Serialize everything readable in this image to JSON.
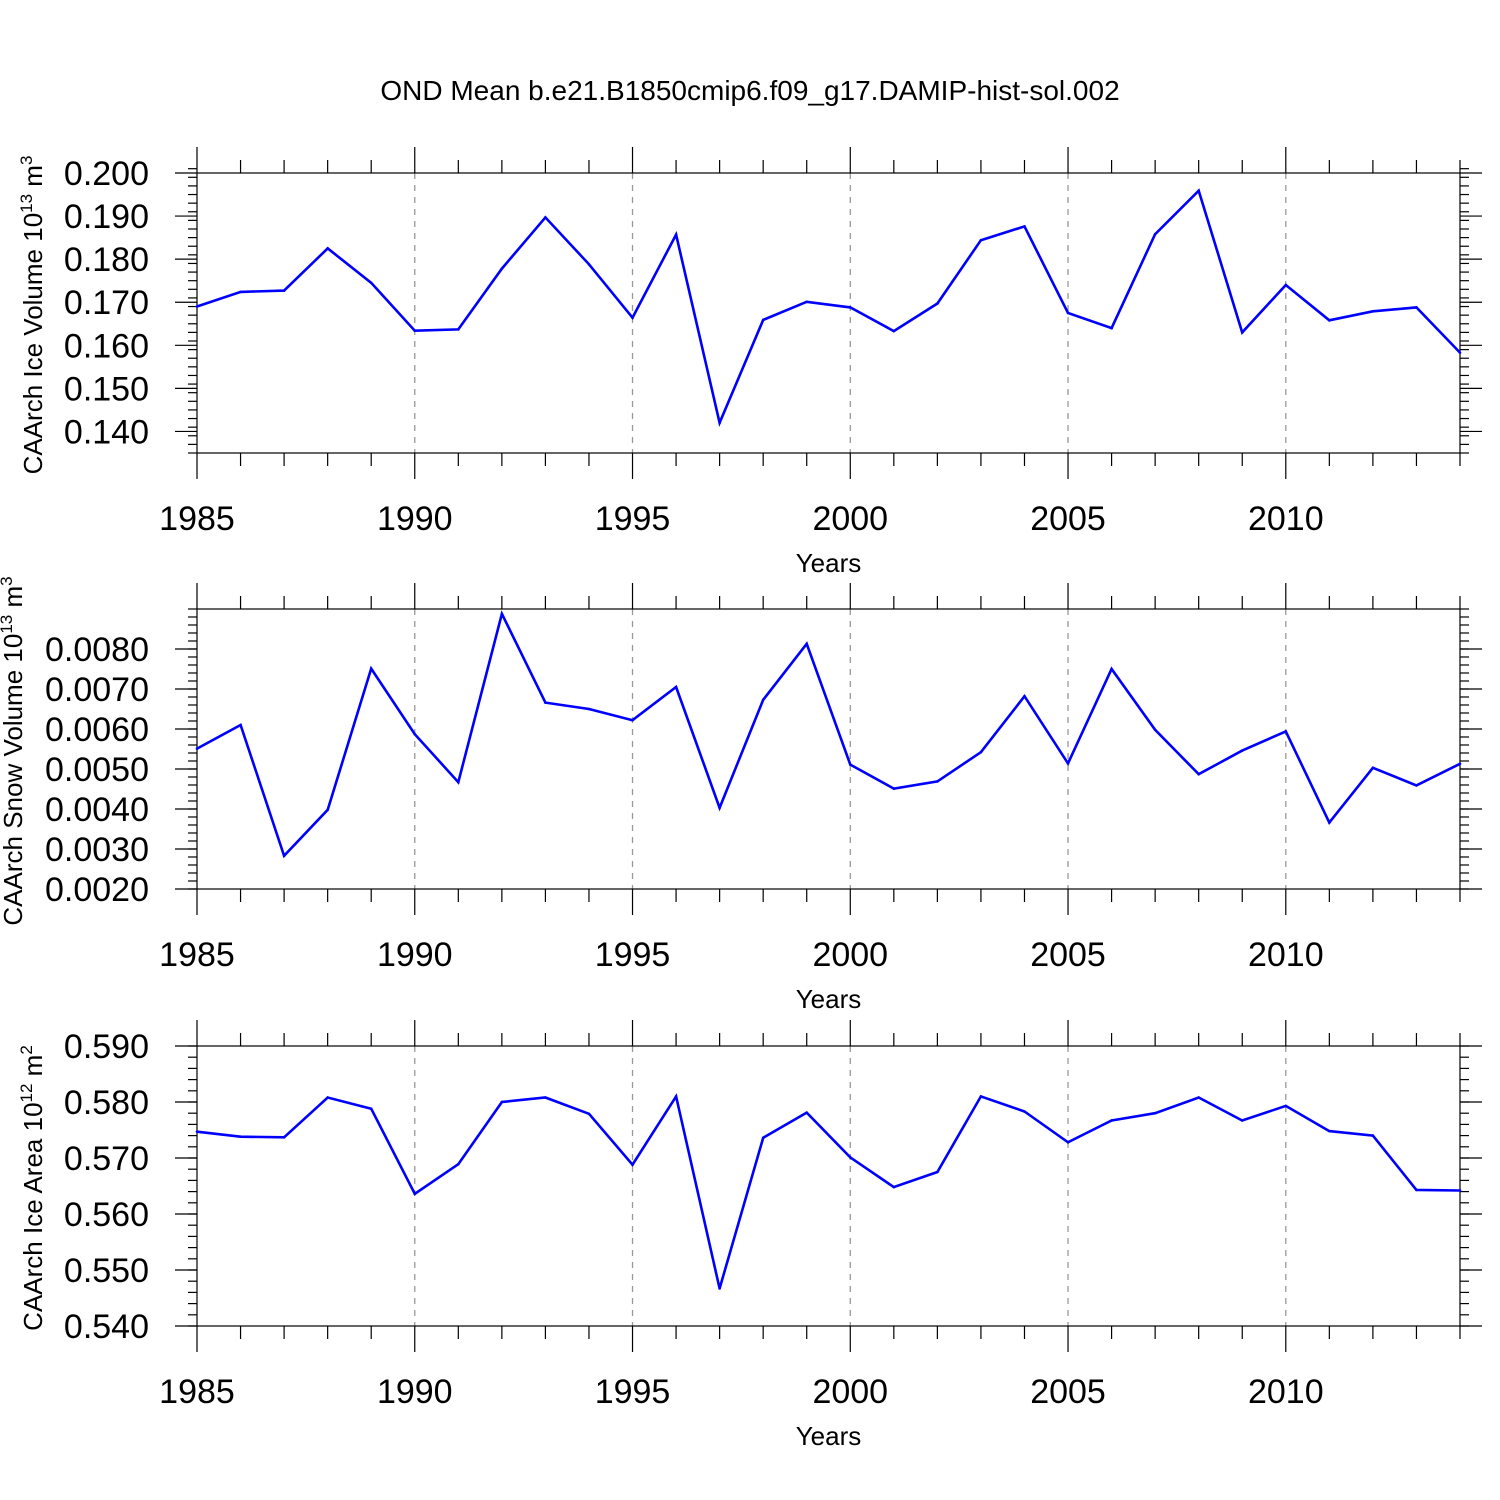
{
  "figure_title": "OND Mean b.e21.B1850cmip6.f09_g17.DAMIP-hist-sol.002",
  "chart_data": [
    {
      "type": "line",
      "title": "OND Mean b.e21.B1850cmip6.f09_g17.DAMIP-hist-sol.002",
      "xlabel": "Years",
      "ylabel_main": "CAArch Ice Volume 10",
      "ylabel_sup1": "13",
      "ylabel_unit": " m",
      "ylabel_sup2": "3",
      "xlim": [
        1985,
        2014
      ],
      "ylim": [
        0.135,
        0.2
      ],
      "x_ticks": [
        1985,
        1990,
        1995,
        2000,
        2005,
        2010
      ],
      "x_tick_labels": [
        "1985",
        "1990",
        "1995",
        "2000",
        "2005",
        "2010"
      ],
      "y_ticks": [
        0.14,
        0.15,
        0.16,
        0.17,
        0.18,
        0.19,
        0.2
      ],
      "y_tick_labels": [
        "0.140",
        "0.150",
        "0.160",
        "0.170",
        "0.180",
        "0.190",
        "0.200"
      ],
      "y_minor_step": 0.002,
      "grid": "vertical dashed at labeled years",
      "color": "#0000ff",
      "x": [
        1985,
        1986,
        1987,
        1988,
        1989,
        1990,
        1991,
        1992,
        1993,
        1994,
        1995,
        1996,
        1997,
        1998,
        1999,
        2000,
        2001,
        2002,
        2003,
        2004,
        2005,
        2006,
        2007,
        2008,
        2009,
        2010,
        2011,
        2012,
        2013,
        2014
      ],
      "values": [
        0.169,
        0.1724,
        0.1727,
        0.1825,
        0.1745,
        0.1634,
        0.1637,
        0.1778,
        0.1897,
        0.1788,
        0.1664,
        0.1857,
        0.142,
        0.1659,
        0.1701,
        0.1688,
        0.1633,
        0.1697,
        0.1844,
        0.1876,
        0.1675,
        0.164,
        0.1858,
        0.1959,
        0.163,
        0.174,
        0.1658,
        0.1679,
        0.1688,
        0.1583
      ]
    },
    {
      "type": "line",
      "xlabel": "Years",
      "ylabel_main": "CAArch Snow Volume 10",
      "ylabel_sup1": "13",
      "ylabel_unit": " m",
      "ylabel_sup2": "3",
      "xlim": [
        1985,
        2014
      ],
      "ylim": [
        0.002,
        0.009
      ],
      "x_ticks": [
        1985,
        1990,
        1995,
        2000,
        2005,
        2010
      ],
      "x_tick_labels": [
        "1985",
        "1990",
        "1995",
        "2000",
        "2005",
        "2010"
      ],
      "y_ticks": [
        0.002,
        0.003,
        0.004,
        0.005,
        0.006,
        0.007,
        0.008
      ],
      "y_tick_labels": [
        "0.0020",
        "0.0030",
        "0.0040",
        "0.0050",
        "0.0060",
        "0.0070",
        "0.0080"
      ],
      "y_minor_step": 0.0002,
      "grid": "vertical dashed at labeled years",
      "color": "#0000ff",
      "x": [
        1985,
        1986,
        1987,
        1988,
        1989,
        1990,
        1991,
        1992,
        1993,
        1994,
        1995,
        1996,
        1997,
        1998,
        1999,
        2000,
        2001,
        2002,
        2003,
        2004,
        2005,
        2006,
        2007,
        2008,
        2009,
        2010,
        2011,
        2012,
        2013,
        2014
      ],
      "values": [
        0.00551,
        0.0061,
        0.00283,
        0.00398,
        0.00751,
        0.00587,
        0.00467,
        0.00888,
        0.00666,
        0.0065,
        0.00622,
        0.00705,
        0.00403,
        0.00673,
        0.00813,
        0.00511,
        0.00451,
        0.00469,
        0.00542,
        0.00682,
        0.00514,
        0.0075,
        0.00598,
        0.00487,
        0.00546,
        0.00594,
        0.00366,
        0.00503,
        0.00459,
        0.00513
      ]
    },
    {
      "type": "line",
      "xlabel": "Years",
      "ylabel_main": "CAArch Ice Area 10",
      "ylabel_sup1": "12",
      "ylabel_unit": " m",
      "ylabel_sup2": "2",
      "xlim": [
        1985,
        2014
      ],
      "ylim": [
        0.54,
        0.59
      ],
      "x_ticks": [
        1985,
        1990,
        1995,
        2000,
        2005,
        2010
      ],
      "x_tick_labels": [
        "1985",
        "1990",
        "1995",
        "2000",
        "2005",
        "2010"
      ],
      "y_ticks": [
        0.54,
        0.55,
        0.56,
        0.57,
        0.58,
        0.59
      ],
      "y_tick_labels": [
        "0.540",
        "0.550",
        "0.560",
        "0.570",
        "0.580",
        "0.590"
      ],
      "y_minor_step": 0.002,
      "grid": "vertical dashed at labeled years",
      "color": "#0000ff",
      "x": [
        1985,
        1986,
        1987,
        1988,
        1989,
        1990,
        1991,
        1992,
        1993,
        1994,
        1995,
        1996,
        1997,
        1998,
        1999,
        2000,
        2001,
        2002,
        2003,
        2004,
        2005,
        2006,
        2007,
        2008,
        2009,
        2010,
        2011,
        2012,
        2013,
        2014
      ],
      "values": [
        0.5747,
        0.5738,
        0.5737,
        0.5808,
        0.5788,
        0.5636,
        0.5689,
        0.58,
        0.5808,
        0.5779,
        0.5688,
        0.581,
        0.5467,
        0.5736,
        0.5781,
        0.5701,
        0.5648,
        0.5675,
        0.581,
        0.5783,
        0.5728,
        0.5767,
        0.578,
        0.5808,
        0.5767,
        0.5793,
        0.5748,
        0.574,
        0.5643,
        0.5642
      ]
    }
  ]
}
